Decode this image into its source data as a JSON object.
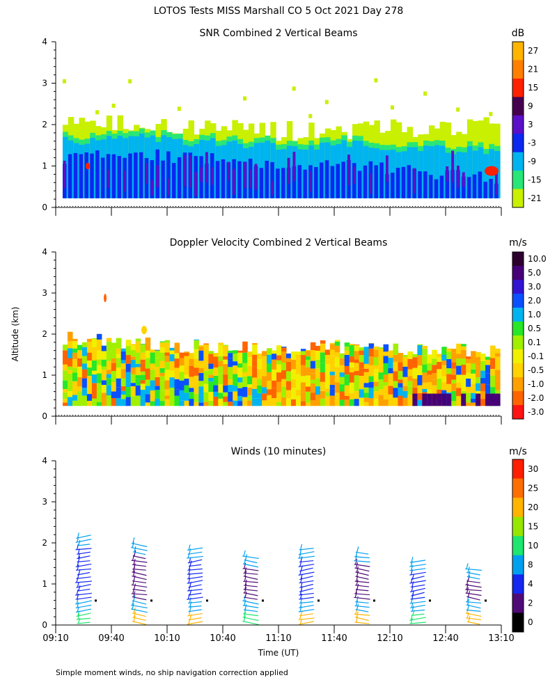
{
  "figure": {
    "title": "LOTOS Tests MISS Marshall CO   5 Oct 2021 Day 278",
    "footer": "Simple moment winds, no ship navigation correction applied",
    "ylabel": "Altitude (km)",
    "xlabel": "Time (UT)"
  },
  "chart_data": [
    {
      "type": "heatmap",
      "title": "SNR Combined 2 Vertical Beams",
      "xlabel": "Time (UT)",
      "ylabel": "Altitude (km)",
      "x_ticks": [
        "09:10",
        "09:40",
        "10:10",
        "10:40",
        "11:10",
        "11:40",
        "12:10",
        "12:40",
        "13:10"
      ],
      "y_ticks": [
        "0",
        "1",
        "2",
        "3",
        "4"
      ],
      "ylim": [
        0,
        4
      ],
      "colorbar": {
        "unit": "dB",
        "labels": [
          "27",
          "21",
          "15",
          "9",
          "3",
          "-3",
          "-9",
          "-15",
          "-21"
        ],
        "colors": [
          "#ffb400",
          "#ff7f00",
          "#ff2000",
          "#460050",
          "#5a10c8",
          "#0a28f0",
          "#00b4f0",
          "#28e678",
          "#c8f000"
        ]
      },
      "layers": [
        {
          "name": "high SNR core",
          "top_km": [
            1.2,
            1.3,
            1.2,
            1.1,
            1.0,
            1.0,
            0.8,
            0.7
          ],
          "color": "#0a28f0"
        },
        {
          "name": "moderate SNR",
          "top_km": [
            1.6,
            1.7,
            1.6,
            1.5,
            1.5,
            1.5,
            1.4,
            1.4
          ],
          "color": "#00b4f0"
        },
        {
          "name": "low SNR fringe",
          "top_km": [
            2.0,
            1.9,
            1.8,
            1.8,
            1.7,
            1.8,
            1.8,
            2.0
          ],
          "color": "#c8f000"
        }
      ]
    },
    {
      "type": "heatmap",
      "title": "Doppler Velocity Combined 2 Vertical Beams",
      "xlabel": "Time (UT)",
      "ylabel": "Altitude (km)",
      "x_ticks": [
        "09:10",
        "09:40",
        "10:10",
        "10:40",
        "11:10",
        "11:40",
        "12:10",
        "12:40",
        "13:10"
      ],
      "y_ticks": [
        "0",
        "1",
        "2",
        "3",
        "4"
      ],
      "ylim": [
        0,
        4
      ],
      "colorbar": {
        "unit": "m/s",
        "labels": [
          "10.0",
          "5.0",
          "3.0",
          "2.0",
          "1.0",
          "0.5",
          "0.1",
          "-0.1",
          "-0.5",
          "-1.0",
          "-2.0",
          "-3.0"
        ],
        "colors": [
          "#2d002d",
          "#460078",
          "#3214d2",
          "#0a50ff",
          "#00b4f0",
          "#28e628",
          "#a0f000",
          "#f0f000",
          "#ffd200",
          "#ffa000",
          "#ff6400",
          "#ff1414"
        ]
      },
      "layers": [
        {
          "name": "echo top",
          "top_km": [
            1.9,
            1.8,
            1.7,
            1.7,
            1.7,
            1.7,
            1.6,
            1.6
          ]
        }
      ]
    },
    {
      "type": "scatter",
      "title": "Winds (10 minutes)",
      "xlabel": "Time (UT)",
      "ylabel": "Altitude (km)",
      "x_ticks": [
        "09:10",
        "09:40",
        "10:10",
        "10:40",
        "11:10",
        "11:40",
        "12:10",
        "12:40",
        "13:10"
      ],
      "y_ticks": [
        "0",
        "1",
        "2",
        "3",
        "4"
      ],
      "ylim": [
        0,
        4
      ],
      "colorbar": {
        "unit": "m/s",
        "labels": [
          "30",
          "25",
          "20",
          "15",
          "10",
          "8",
          "4",
          "2",
          "0"
        ],
        "colors": [
          "#ff1e00",
          "#ff6e00",
          "#ffb400",
          "#96e600",
          "#1ee66e",
          "#00a0f0",
          "#1428f0",
          "#500a78",
          "#000000"
        ]
      },
      "profile_times_utc": [
        "09:25",
        "09:55",
        "10:25",
        "10:55",
        "11:25",
        "11:55",
        "12:25",
        "12:55"
      ],
      "profile_tops_km": [
        2.2,
        2.0,
        1.9,
        1.7,
        1.9,
        1.8,
        1.6,
        1.4
      ]
    }
  ]
}
